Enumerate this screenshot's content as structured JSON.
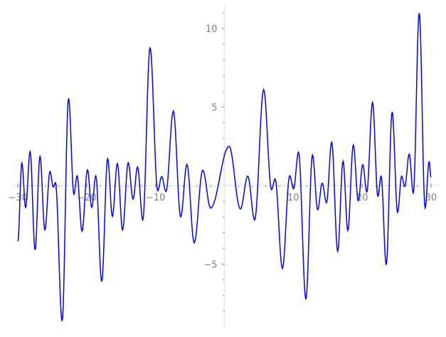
{
  "chart_data": {
    "type": "line",
    "title": "",
    "xlabel": "",
    "ylabel": "",
    "xlim": [
      -30.8,
      31.2
    ],
    "ylim": [
      -9.0,
      11.4
    ],
    "x_ticks": [
      -30,
      -20,
      -10,
      10,
      20,
      30
    ],
    "x_tick_labels": [
      "−30",
      "−20",
      "−10",
      "10",
      "20",
      "30"
    ],
    "y_ticks": [
      -5,
      5,
      10
    ],
    "y_tick_labels": [
      "−5",
      "5",
      "10"
    ],
    "x_minor_step": 2,
    "y_minor_step": 1,
    "axes_style": "crossing at origin",
    "grid": false,
    "colors": {
      "line": "#0000ff",
      "axis": "#e6e6e6",
      "ticks": "#808080"
    },
    "series": [
      {
        "x": [
          -30,
          -29.42,
          -28.87,
          -28.22,
          -27.5,
          -26.78,
          -26.08,
          -25.33,
          -24.85,
          -24.54,
          -23.57,
          -22.64,
          -21.85,
          -21.4,
          -20.68,
          -19.89,
          -19.27,
          -18.68,
          -17.82,
          -16.96,
          -16.27,
          -15.55,
          -14.79,
          -13.97,
          -13.27,
          -12.62,
          -11.86,
          -10.8,
          -9.69,
          -9.11,
          -8.49,
          -7.42,
          -6.35,
          -5.45,
          -4.39,
          -3.15,
          -2.01,
          0.67,
          2.32,
          3.39,
          4.39,
          5.7,
          6.84,
          7.36,
          8.42,
          9.48,
          10.04,
          10.76,
          11.83,
          12.79,
          13.55,
          14.2,
          14.82,
          15.58,
          16.45,
          17.23,
          17.92,
          18.72,
          19.44,
          20.09,
          20.68,
          21.51,
          22.29,
          22.75,
          23.5,
          24.36,
          25.15,
          25.74,
          26.19,
          26.84,
          27.43,
          28.29,
          29.15,
          29.73,
          30
        ],
        "y": [
          -3.54,
          1.43,
          -1.39,
          2.16,
          -4.1,
          1.86,
          -2.82,
          0.9,
          -0.1,
          0.19,
          -8.63,
          5.55,
          -0.56,
          0.62,
          -2.9,
          1.0,
          -1.39,
          0.62,
          -6.11,
          1.71,
          -1.96,
          1.4,
          -2.82,
          1.46,
          -0.86,
          1.18,
          -2.19,
          8.79,
          -0.33,
          0.57,
          -0.38,
          4.75,
          -1.99,
          1.34,
          -3.65,
          0.98,
          -1.43,
          2.5,
          -1.49,
          0.6,
          -2.19,
          6.11,
          -0.26,
          0.42,
          -5.28,
          0.63,
          -0.21,
          2.13,
          -7.23,
          1.95,
          -1.54,
          0.15,
          -1.09,
          2.76,
          -4.18,
          1.55,
          -2.86,
          2.58,
          -0.96,
          1.33,
          -0.41,
          5.29,
          -0.68,
          0.6,
          -5.04,
          4.69,
          -1.71,
          0.6,
          -0.06,
          2.0,
          -0.48,
          10.98,
          -1.42,
          1.52,
          0.53
        ]
      }
    ]
  }
}
